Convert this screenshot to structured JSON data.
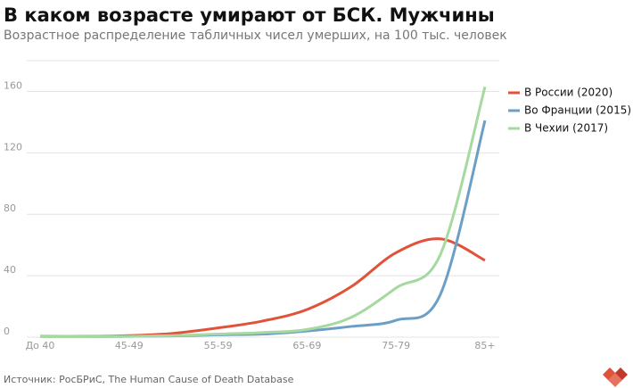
{
  "chart_data": {
    "type": "line",
    "title": "В каком возрасте умирают от БСК. Мужчины",
    "subtitle": "Возрастное распределение табличных чисел умерших, на 100 тыс. человек",
    "source": "Источник: РосБРиС, The Human Cause of Death Database",
    "categories": [
      "До 40",
      null,
      "45-49",
      null,
      "55-59",
      null,
      "65-69",
      null,
      "75-79",
      null,
      "85+"
    ],
    "series": [
      {
        "name": "В России (2020)",
        "color": "#e0533a",
        "values": [
          0.5,
          0.5,
          1,
          2.5,
          6,
          10.5,
          18,
          33,
          55,
          64,
          50
        ]
      },
      {
        "name": "Во Франции (2015)",
        "color": "#6c9fc6",
        "values": [
          0.3,
          0.3,
          0.5,
          0.8,
          1.5,
          2,
          4,
          7,
          11,
          28,
          141
        ]
      },
      {
        "name": "В Чехии (2017)",
        "color": "#a6d9a0",
        "values": [
          0.3,
          0.3,
          0.5,
          1,
          2,
          3,
          5,
          13,
          32,
          54,
          163
        ]
      }
    ],
    "ylim": [
      0,
      180
    ],
    "yticks": [
      0,
      40,
      80,
      120,
      160
    ],
    "grid": true,
    "legend": "right"
  }
}
